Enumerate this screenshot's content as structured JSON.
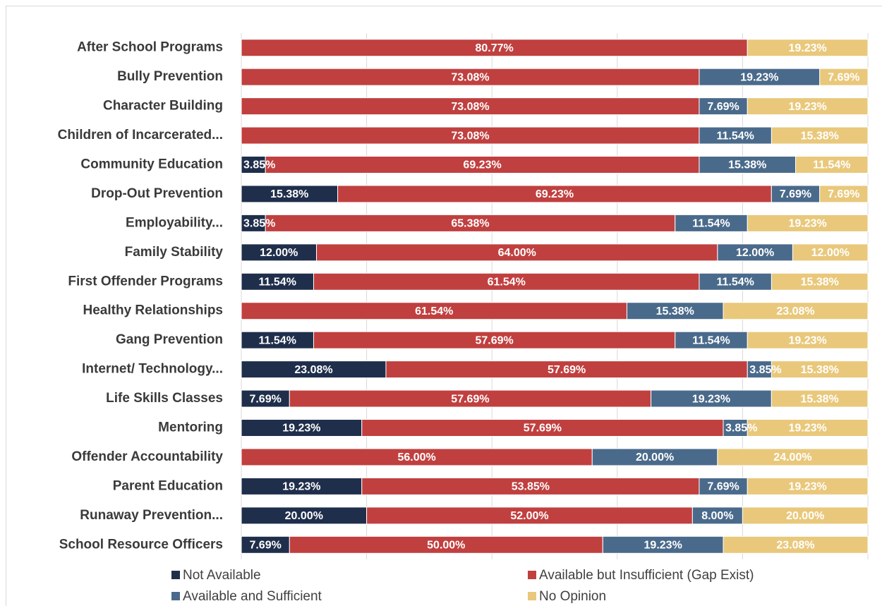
{
  "chart_data": {
    "type": "stacked_barh",
    "categories": [
      "After School Programs",
      "Bully Prevention",
      "Character Building",
      "Children of Incarcerated...",
      "Community Education",
      "Drop-Out Prevention",
      "Employability...",
      "Family Stability",
      "First Offender Programs",
      "Healthy Relationships",
      "Gang Prevention",
      "Internet/ Technology...",
      "Life Skills Classes",
      "Mentoring",
      "Offender Accountability",
      "Parent Education",
      "Runaway Prevention...",
      "School Resource Officers"
    ],
    "series": [
      {
        "name": "Not Available",
        "color": "#1f2e4b",
        "values": [
          null,
          null,
          null,
          null,
          3.85,
          15.38,
          3.85,
          12,
          11.54,
          null,
          11.54,
          23.08,
          7.69,
          19.23,
          null,
          19.23,
          20,
          7.69
        ],
        "value_labels": [
          null,
          null,
          null,
          null,
          "3.85%",
          "15.38%",
          "3.85%",
          "12.00%",
          "11.54%",
          null,
          "11.54%",
          "23.08%",
          "7.69%",
          "19.23%",
          null,
          "19.23%",
          "20.00%",
          "7.69%"
        ]
      },
      {
        "name": "Available but Insufficient (Gap Exist)",
        "color": "#c0403f",
        "values": [
          80.77,
          73.08,
          73.08,
          73.08,
          69.23,
          69.23,
          65.38,
          64,
          61.54,
          61.54,
          57.69,
          57.69,
          57.69,
          57.69,
          56,
          53.85,
          52,
          50
        ],
        "value_labels": [
          "80.77%",
          "73.08%",
          "73.08%",
          "73.08%",
          "69.23%",
          "69.23%",
          "65.38%",
          "64.00%",
          "61.54%",
          "61.54%",
          "57.69%",
          "57.69%",
          "57.69%",
          "57.69%",
          "56.00%",
          "53.85%",
          "52.00%",
          "50.00%"
        ]
      },
      {
        "name": "Available and Sufficient",
        "color": "#4a6a8b",
        "values": [
          null,
          19.23,
          7.69,
          11.54,
          15.38,
          7.69,
          11.54,
          12,
          11.54,
          15.38,
          11.54,
          3.85,
          19.23,
          3.85,
          20,
          7.69,
          8,
          19.23
        ],
        "value_labels": [
          null,
          "19.23%",
          "7.69%",
          "11.54%",
          "15.38%",
          "7.69%",
          "11.54%",
          "12.00%",
          "11.54%",
          "15.38%",
          "11.54%",
          "3.85%",
          "19.23%",
          "3.85%",
          "20.00%",
          "7.69%",
          "8.00%",
          "19.23%"
        ]
      },
      {
        "name": "No Opinion",
        "color": "#e9c87b",
        "values": [
          19.23,
          7.69,
          19.23,
          15.38,
          11.54,
          7.69,
          19.23,
          12,
          15.38,
          23.08,
          19.23,
          15.38,
          15.38,
          19.23,
          24,
          19.23,
          20,
          23.08
        ],
        "value_labels": [
          "19.23%",
          "7.69%",
          "19.23%",
          "15.38%",
          "11.54%",
          "7.69%",
          "19.23%",
          "12.00%",
          "15.38%",
          "23.08%",
          "19.23%",
          "15.38%",
          "15.38%",
          "19.23%",
          "24.00%",
          "19.23%",
          "20.00%",
          "23.08%"
        ]
      }
    ],
    "xlim": [
      0,
      100
    ],
    "xticks": [
      0,
      20,
      40,
      60,
      80,
      100
    ],
    "grid": true
  }
}
